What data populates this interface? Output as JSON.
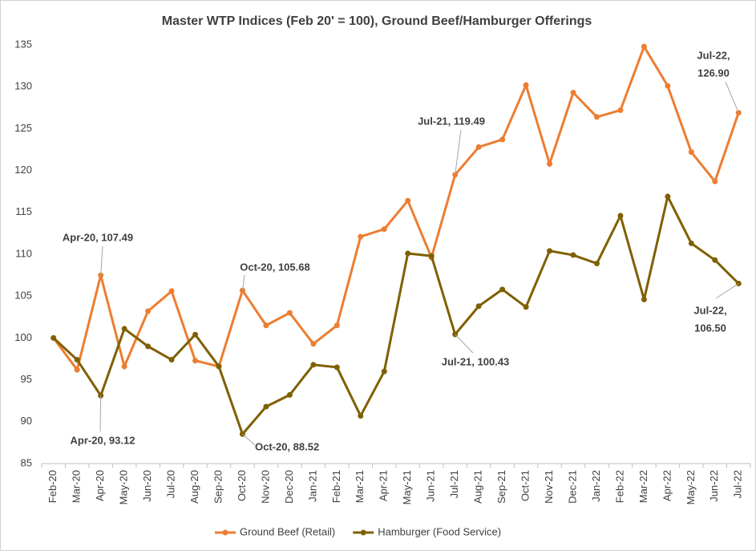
{
  "chart_data": {
    "type": "line",
    "title": "Master WTP Indices (Feb 20' = 100), Ground Beef/Hamburger Offerings",
    "categories": [
      "Feb-20",
      "Mar-20",
      "Apr-20",
      "May-20",
      "Jun-20",
      "Jul-20",
      "Aug-20",
      "Sep-20",
      "Oct-20",
      "Nov-20",
      "Dec-20",
      "Jan-21",
      "Feb-21",
      "Mar-21",
      "Apr-21",
      "May-21",
      "Jun-21",
      "Jul-21",
      "Aug-21",
      "Sep-21",
      "Oct-21",
      "Nov-21",
      "Dec-21",
      "Jan-22",
      "Feb-22",
      "Mar-22",
      "Apr-22",
      "May-22",
      "Jun-22",
      "Jul-22"
    ],
    "series": [
      {
        "name": "Ground Beef (Retail)",
        "color": "#ed7d31",
        "values": [
          100,
          96.2,
          107.49,
          96.6,
          103.2,
          105.6,
          97.3,
          96.6,
          105.68,
          101.5,
          103.0,
          99.3,
          101.5,
          112.1,
          113.0,
          116.4,
          109.6,
          119.49,
          122.8,
          123.7,
          130.2,
          120.8,
          129.3,
          126.4,
          127.2,
          134.8,
          130.1,
          122.2,
          118.7,
          126.9
        ]
      },
      {
        "name": "Hamburger (Food Service)",
        "color": "#7f6000",
        "values": [
          100,
          97.4,
          93.12,
          101.1,
          99.0,
          97.4,
          100.4,
          96.6,
          88.52,
          91.8,
          93.2,
          96.8,
          96.5,
          90.7,
          96.0,
          110.1,
          109.8,
          100.43,
          103.8,
          105.8,
          103.7,
          110.4,
          109.9,
          108.9,
          114.6,
          104.6,
          116.9,
          111.3,
          109.3,
          106.5
        ]
      }
    ],
    "ylim": [
      85,
      135
    ],
    "yticks": [
      85,
      90,
      95,
      100,
      105,
      110,
      115,
      120,
      125,
      130,
      135
    ],
    "grid": false,
    "legend": "bottom",
    "annotations": [
      {
        "lines": [
          "Apr-20, 107.49"
        ]
      },
      {
        "lines": [
          "Apr-20, 93.12"
        ]
      },
      {
        "lines": [
          "Oct-20, 105.68"
        ]
      },
      {
        "lines": [
          "Oct-20, 88.52"
        ]
      },
      {
        "lines": [
          "Jul-21, 119.49"
        ]
      },
      {
        "lines": [
          "Jul-21, 100.43"
        ]
      },
      {
        "lines": [
          "Jul-22,",
          "126.90"
        ]
      },
      {
        "lines": [
          "Jul-22,",
          "106.50"
        ]
      }
    ]
  }
}
